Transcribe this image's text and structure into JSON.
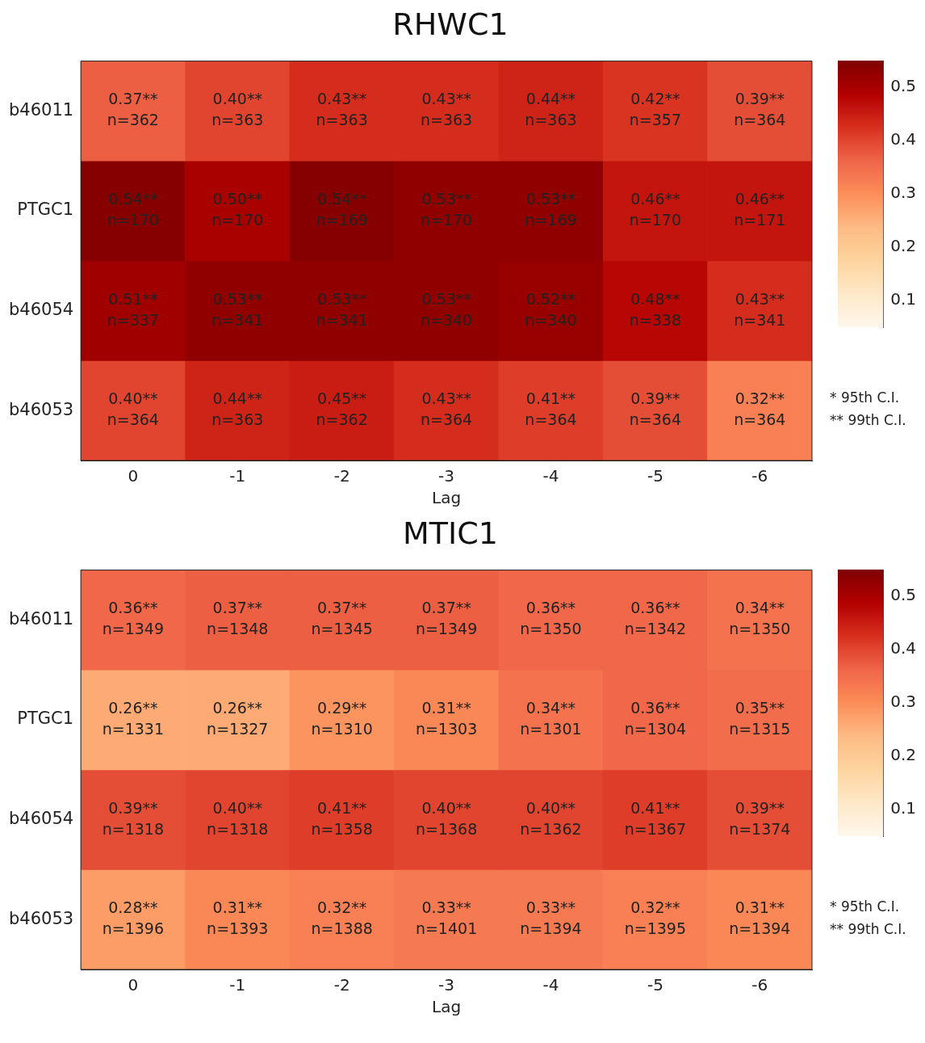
{
  "chart_data": [
    {
      "type": "heatmap",
      "title": "RHWC1",
      "xlabel": "Lag",
      "categories": [
        "0",
        "-1",
        "-2",
        "-3",
        "-4",
        "-5",
        "-6"
      ],
      "y_categories": [
        "b46011",
        "PTGC1",
        "b46054",
        "b46053"
      ],
      "cells": [
        [
          0.37,
          0.4,
          0.43,
          0.43,
          0.44,
          0.42,
          0.39
        ],
        [
          0.54,
          0.5,
          0.54,
          0.53,
          0.53,
          0.46,
          0.46
        ],
        [
          0.51,
          0.53,
          0.53,
          0.53,
          0.52,
          0.48,
          0.43
        ],
        [
          0.4,
          0.44,
          0.45,
          0.43,
          0.41,
          0.39,
          0.32
        ]
      ],
      "cell_labels": [
        [
          "0.37**\nn=362",
          "0.40**\nn=363",
          "0.43**\nn=363",
          "0.43**\nn=363",
          "0.44**\nn=363",
          "0.42**\nn=357",
          "0.39**\nn=364"
        ],
        [
          "0.54**\nn=170",
          "0.50**\nn=170",
          "0.54**\nn=169",
          "0.53**\nn=170",
          "0.53**\nn=169",
          "0.46**\nn=170",
          "0.46**\nn=171"
        ],
        [
          "0.51**\nn=337",
          "0.53**\nn=341",
          "0.53**\nn=341",
          "0.53**\nn=340",
          "0.52**\nn=340",
          "0.48**\nn=338",
          "0.43**\nn=341"
        ],
        [
          "0.40**\nn=364",
          "0.44**\nn=363",
          "0.45**\nn=362",
          "0.43**\nn=364",
          "0.41**\nn=364",
          "0.39**\nn=364",
          "0.32**\nn=364"
        ]
      ],
      "clim": [
        0.05,
        0.55
      ],
      "cticks": [
        0.1,
        0.2,
        0.3,
        0.4,
        0.5
      ],
      "annotations": [
        "* 95th C.I.",
        "** 99th C.I."
      ]
    },
    {
      "type": "heatmap",
      "title": "MTIC1",
      "xlabel": "Lag",
      "categories": [
        "0",
        "-1",
        "-2",
        "-3",
        "-4",
        "-5",
        "-6"
      ],
      "y_categories": [
        "b46011",
        "PTGC1",
        "b46054",
        "b46053"
      ],
      "cells": [
        [
          0.36,
          0.37,
          0.37,
          0.37,
          0.36,
          0.36,
          0.34
        ],
        [
          0.26,
          0.26,
          0.29,
          0.31,
          0.34,
          0.36,
          0.35
        ],
        [
          0.39,
          0.4,
          0.41,
          0.4,
          0.4,
          0.41,
          0.39
        ],
        [
          0.28,
          0.31,
          0.32,
          0.33,
          0.33,
          0.32,
          0.31
        ]
      ],
      "cell_labels": [
        [
          "0.36**\nn=1349",
          "0.37**\nn=1348",
          "0.37**\nn=1345",
          "0.37**\nn=1349",
          "0.36**\nn=1350",
          "0.36**\nn=1342",
          "0.34**\nn=1350"
        ],
        [
          "0.26**\nn=1331",
          "0.26**\nn=1327",
          "0.29**\nn=1310",
          "0.31**\nn=1303",
          "0.34**\nn=1301",
          "0.36**\nn=1304",
          "0.35**\nn=1315"
        ],
        [
          "0.39**\nn=1318",
          "0.40**\nn=1318",
          "0.41**\nn=1358",
          "0.40**\nn=1368",
          "0.40**\nn=1362",
          "0.41**\nn=1367",
          "0.39**\nn=1374"
        ],
        [
          "0.28**\nn=1396",
          "0.31**\nn=1393",
          "0.32**\nn=1388",
          "0.33**\nn=1401",
          "0.33**\nn=1394",
          "0.32**\nn=1395",
          "0.31**\nn=1394"
        ]
      ],
      "clim": [
        0.05,
        0.55
      ],
      "cticks": [
        0.1,
        0.2,
        0.3,
        0.4,
        0.5
      ],
      "annotations": [
        "* 95th C.I.",
        "** 99th C.I."
      ]
    }
  ]
}
